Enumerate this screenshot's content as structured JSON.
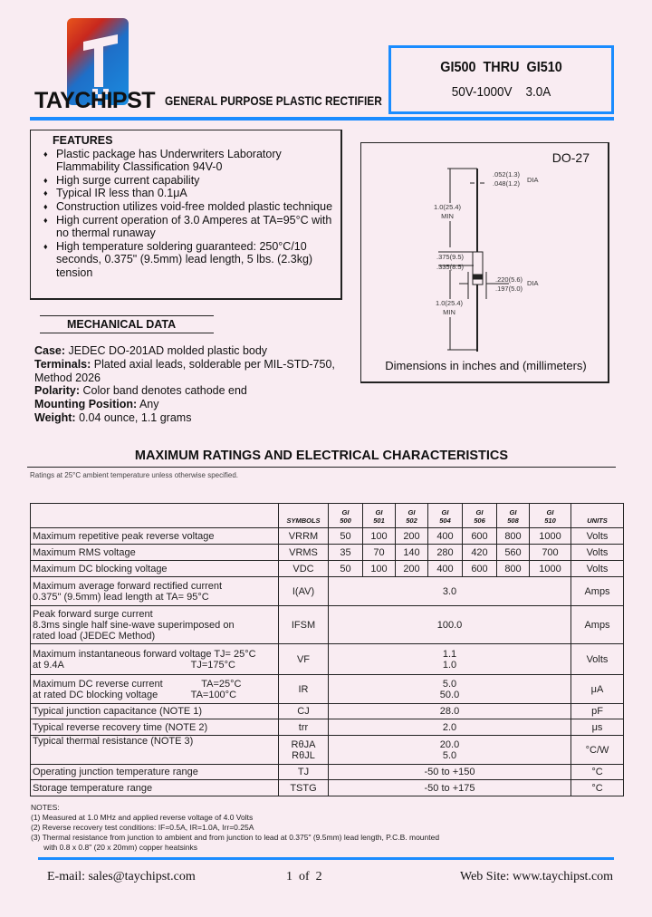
{
  "header": {
    "brand": "TAYCHIPST",
    "subtitle": "GENERAL PURPOSE PLASTIC RECTIFIER",
    "part_range": "GI500  THRU  GI510",
    "rating": "50V-1000V    3.0A",
    "accent_color": "#1a8cff"
  },
  "features": {
    "title": "FEATURES",
    "items": [
      "Plastic package has Underwriters Laboratory Flammability Classification 94V-0",
      "High surge current capability",
      "Typical IR less than 0.1μA",
      "Construction utilizes void-free molded plastic technique",
      "High current operation of 3.0 Amperes at TA=95°C with no thermal runaway",
      "High temperature soldering guaranteed: 250°C/10 seconds, 0.375\" (9.5mm) lead length, 5 lbs. (2.3kg) tension"
    ]
  },
  "mechanical": {
    "title": "MECHANICAL DATA",
    "items": [
      {
        "label": "Case:",
        "text": " JEDEC DO-201AD molded plastic body"
      },
      {
        "label": "Terminals:",
        "text": " Plated axial leads, solderable per MIL-STD-750, Method 2026"
      },
      {
        "label": "Polarity:",
        "text": " Color band denotes cathode end"
      },
      {
        "label": "Mounting Position:",
        "text": " Any"
      },
      {
        "label": "Weight:",
        "text": " 0.04 ounce, 1.1 grams"
      }
    ]
  },
  "diagram": {
    "package": "DO-27",
    "lead_dia_1": ".052(1.3)",
    "lead_dia_2": ".048(1.2)",
    "dia": "DIA",
    "lead_len_1": "1.0(25.4)",
    "lead_len_2": "MIN",
    "body_len_1": ".375(9.5)",
    "body_len_2": ".335(8.5)",
    "body_dia_1": ".220(5.6)",
    "body_dia_2": ".197(5.0)",
    "lead_len_3": "1.0(25.4)",
    "lead_len_4": "MIN",
    "caption": "Dimensions in inches and (millimeters)"
  },
  "ratings": {
    "title": "MAXIMUM RATINGS AND ELECTRICAL CHARACTERISTICS",
    "note": "Ratings at 25°C ambient temperature unless otherwise specified.",
    "headers": {
      "symbols": "SYMBOLS",
      "parts": [
        [
          "GI",
          "500"
        ],
        [
          "GI",
          "501"
        ],
        [
          "GI",
          "502"
        ],
        [
          "GI",
          "504"
        ],
        [
          "GI",
          "506"
        ],
        [
          "GI",
          "508"
        ],
        [
          "GI",
          "510"
        ]
      ],
      "units": "UNITS"
    },
    "rows_multi": [
      {
        "label": "Maximum repetitive peak reverse voltage",
        "symbol": "VRRM",
        "values": [
          "50",
          "100",
          "200",
          "400",
          "600",
          "800",
          "1000"
        ],
        "unit": "Volts"
      },
      {
        "label": "Maximum RMS voltage",
        "symbol": "VRMS",
        "values": [
          "35",
          "70",
          "140",
          "280",
          "420",
          "560",
          "700"
        ],
        "unit": "Volts"
      },
      {
        "label": "Maximum DC blocking voltage",
        "symbol": "VDC",
        "values": [
          "50",
          "100",
          "200",
          "400",
          "600",
          "800",
          "1000"
        ],
        "unit": "Volts"
      }
    ],
    "rows": [
      {
        "label": [
          "Maximum average forward rectified current",
          "0.375\" (9.5mm) lead length at TA= 95°C"
        ],
        "symbol": [
          "I(AV)"
        ],
        "value": [
          "3.0"
        ],
        "unit": "Amps"
      },
      {
        "label": [
          "Peak forward surge current",
          "8.3ms single half sine-wave superimposed on",
          "rated load (JEDEC Method)"
        ],
        "symbol": [
          "IFSM"
        ],
        "value": [
          "100.0"
        ],
        "unit": "Amps"
      },
      {
        "label": [
          "Maximum instantaneous forward voltage TJ= 25°C",
          "at 9.4A                                              TJ=175°C"
        ],
        "symbol": [
          "VF"
        ],
        "value": [
          "1.1",
          "1.0"
        ],
        "unit": "Volts"
      },
      {
        "label": [
          "Maximum DC reverse current              TA=25°C",
          "at rated DC blocking voltage            TA=100°C"
        ],
        "symbol": [
          "IR"
        ],
        "value": [
          "5.0",
          "50.0"
        ],
        "unit": "μA"
      },
      {
        "label": [
          "Typical junction capacitance (NOTE 1)"
        ],
        "symbol": [
          "CJ"
        ],
        "value": [
          "28.0"
        ],
        "unit": "pF"
      },
      {
        "label": [
          "Typical reverse recovery time (NOTE 2)"
        ],
        "symbol": [
          "trr"
        ],
        "value": [
          "2.0"
        ],
        "unit": "μs"
      },
      {
        "label": [
          "Typical thermal resistance (NOTE 3)",
          ""
        ],
        "symbol": [
          "RθJA",
          "RθJL"
        ],
        "value": [
          "20.0",
          "5.0"
        ],
        "unit": "°C/W"
      },
      {
        "label": [
          "Operating junction temperature range"
        ],
        "symbol": [
          "TJ"
        ],
        "value": [
          "-50 to +150"
        ],
        "unit": "°C"
      },
      {
        "label": [
          "Storage temperature range"
        ],
        "symbol": [
          "TSTG"
        ],
        "value": [
          "-50 to +175"
        ],
        "unit": "°C"
      }
    ]
  },
  "notes": {
    "title": "NOTES:",
    "items": [
      "(1) Measured at 1.0 MHz and applied reverse voltage of 4.0 Volts",
      "(2) Reverse recovery test conditions: IF=0.5A, IR=1.0A, Irr=0.25A",
      "(3) Thermal resistance from junction to ambient and from junction to lead at 0.375\" (9.5mm) lead length, P.C.B. mounted",
      "      with 0.8 x 0.8\" (20 x 20mm) copper heatsinks"
    ]
  },
  "footer": {
    "email": "E-mail: sales@taychipst.com",
    "page": "1  of  2",
    "website": "Web Site: www.taychipst.com"
  }
}
